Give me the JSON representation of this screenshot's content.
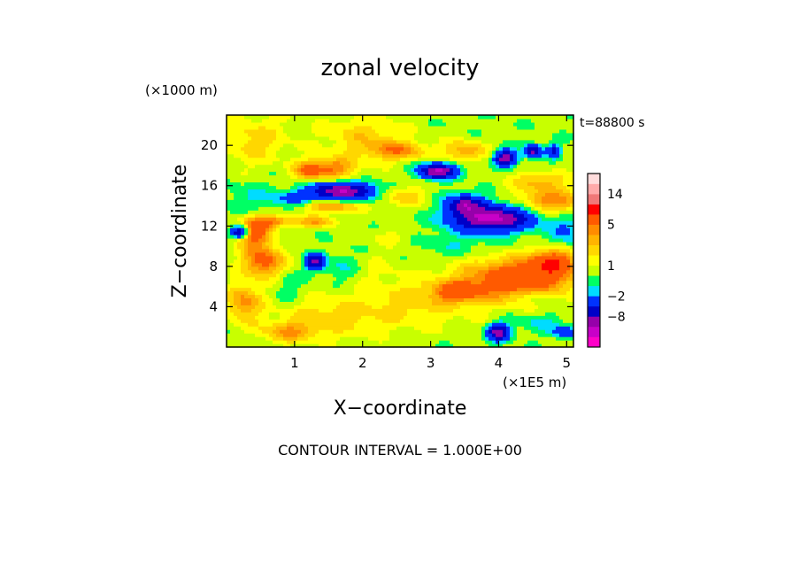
{
  "chart_data": {
    "type": "heatmap",
    "title": "zonal velocity",
    "xlabel": "X−coordinate",
    "ylabel": "Z−coordinate",
    "x_scale_label": "(×1E5 m)",
    "y_scale_label": "(×1000 m)",
    "time_label": "t=88800 s",
    "footer": "CONTOUR INTERVAL = 1.000E+00",
    "xlim": [
      0,
      5.1
    ],
    "ylim": [
      0,
      23
    ],
    "x_ticks": [
      1,
      2,
      3,
      4,
      5
    ],
    "y_ticks": [
      4,
      8,
      12,
      16,
      20
    ],
    "colorbar": {
      "colors": [
        "#ff00c8",
        "#c800c8",
        "#9600aa",
        "#0000c8",
        "#0032ff",
        "#00dcff",
        "#00ff64",
        "#c8ff00",
        "#ffff00",
        "#ffd700",
        "#ffb400",
        "#ff8c00",
        "#ff5a00",
        "#ff0000",
        "#f07878",
        "#ffaaaa",
        "#ffdcdc"
      ],
      "tick_labels": [
        {
          "label": "14",
          "value": 14
        },
        {
          "label": "5",
          "value": 5
        },
        {
          "label": "1",
          "value": 1
        },
        {
          "label": "−2",
          "value": -2
        },
        {
          "label": "−8",
          "value": -8
        }
      ],
      "levels": [
        -14,
        -11,
        -8,
        -5,
        -2,
        -1,
        0,
        1,
        2,
        3,
        4,
        5,
        8,
        11,
        14,
        17
      ]
    },
    "field": {
      "background": 0.3,
      "features": [
        {
          "x": 0.4,
          "z": 11.5,
          "rx": 0.25,
          "rz": 1.6,
          "v": 6.0
        },
        {
          "x": 0.55,
          "z": 8.5,
          "rx": 0.3,
          "rz": 1.5,
          "v": 5.5
        },
        {
          "x": 0.25,
          "z": 4.5,
          "rx": 0.25,
          "rz": 1.8,
          "v": 4.0
        },
        {
          "x": 0.9,
          "z": 6.0,
          "rx": 0.2,
          "rz": 2.0,
          "v": -1.2
        },
        {
          "x": 1.55,
          "z": 17.8,
          "rx": 0.35,
          "rz": 1.0,
          "v": 4.6
        },
        {
          "x": 1.2,
          "z": 17.5,
          "rx": 0.2,
          "rz": 0.9,
          "v": 4.2
        },
        {
          "x": 1.7,
          "z": 15.5,
          "rx": 0.45,
          "rz": 0.8,
          "v": -11.0
        },
        {
          "x": 1.0,
          "z": 14.8,
          "rx": 0.3,
          "rz": 0.7,
          "v": -2.5
        },
        {
          "x": 0.4,
          "z": 14.5,
          "rx": 0.45,
          "rz": 1.8,
          "v": -1.4
        },
        {
          "x": 0.2,
          "z": 11.5,
          "rx": 0.12,
          "rz": 0.6,
          "v": -10.0
        },
        {
          "x": 0.7,
          "z": 12.5,
          "rx": 0.25,
          "rz": 0.6,
          "v": 4.0
        },
        {
          "x": 1.3,
          "z": 12.5,
          "rx": 0.3,
          "rz": 0.6,
          "v": 3.5
        },
        {
          "x": 1.55,
          "z": 14.0,
          "rx": 0.4,
          "rz": 0.55,
          "v": 4.0
        },
        {
          "x": 1.3,
          "z": 8.5,
          "rx": 0.12,
          "rz": 0.7,
          "v": -9.5
        },
        {
          "x": 1.7,
          "z": 8.0,
          "rx": 0.35,
          "rz": 1.5,
          "v": -1.5
        },
        {
          "x": 2.5,
          "z": 19.5,
          "rx": 0.45,
          "rz": 0.9,
          "v": 4.0
        },
        {
          "x": 3.1,
          "z": 17.5,
          "rx": 0.25,
          "rz": 0.7,
          "v": -12.0
        },
        {
          "x": 3.5,
          "z": 19.5,
          "rx": 0.3,
          "rz": 1.0,
          "v": 3.5
        },
        {
          "x": 2.6,
          "z": 15.0,
          "rx": 0.3,
          "rz": 1.0,
          "v": 2.5
        },
        {
          "x": 3.9,
          "z": 12.8,
          "rx": 0.55,
          "rz": 1.2,
          "v": -12.5
        },
        {
          "x": 3.5,
          "z": 14.2,
          "rx": 0.25,
          "rz": 0.9,
          "v": -9.0
        },
        {
          "x": 4.8,
          "z": 14.5,
          "rx": 0.5,
          "rz": 1.2,
          "v": 4.5
        },
        {
          "x": 4.6,
          "z": 16.5,
          "rx": 0.4,
          "rz": 0.9,
          "v": 3.0
        },
        {
          "x": 4.1,
          "z": 18.8,
          "rx": 0.15,
          "rz": 0.7,
          "v": -11.0
        },
        {
          "x": 4.5,
          "z": 19.5,
          "rx": 0.12,
          "rz": 0.6,
          "v": -9.0
        },
        {
          "x": 4.8,
          "z": 19.5,
          "rx": 0.1,
          "rz": 0.6,
          "v": -6.0
        },
        {
          "x": 3.4,
          "z": 10.3,
          "rx": 0.6,
          "rz": 1.3,
          "v": -1.2
        },
        {
          "x": 4.3,
          "z": 6.8,
          "rx": 0.8,
          "rz": 2.0,
          "v": 7.0
        },
        {
          "x": 4.8,
          "z": 8.5,
          "rx": 0.3,
          "rz": 1.2,
          "v": 6.0
        },
        {
          "x": 3.4,
          "z": 5.5,
          "rx": 0.35,
          "rz": 1.0,
          "v": 5.0
        },
        {
          "x": 2.8,
          "z": 4.5,
          "rx": 0.8,
          "rz": 2.5,
          "v": 2.0
        },
        {
          "x": 2.1,
          "z": 8.0,
          "rx": 0.4,
          "rz": 1.5,
          "v": 0.9
        },
        {
          "x": 4.6,
          "z": 5.0,
          "rx": 0.3,
          "rz": 0.8,
          "v": -2.0
        },
        {
          "x": 4.0,
          "z": 1.5,
          "rx": 0.15,
          "rz": 0.8,
          "v": -10.0
        },
        {
          "x": 4.6,
          "z": 2.5,
          "rx": 0.35,
          "rz": 1.0,
          "v": -1.5
        },
        {
          "x": 5.0,
          "z": 1.5,
          "rx": 0.2,
          "rz": 0.6,
          "v": -4.0
        },
        {
          "x": 1.5,
          "z": 3.0,
          "rx": 0.8,
          "rz": 2.0,
          "v": 2.2
        },
        {
          "x": 0.9,
          "z": 1.5,
          "rx": 0.4,
          "rz": 1.0,
          "v": 3.2
        },
        {
          "x": 2.4,
          "z": 11.0,
          "rx": 0.4,
          "rz": 1.0,
          "v": 0.9
        },
        {
          "x": 2.0,
          "z": 21.0,
          "rx": 0.6,
          "rz": 2.0,
          "v": 2.2
        },
        {
          "x": 0.4,
          "z": 20.5,
          "rx": 0.5,
          "rz": 2.5,
          "v": 2.2
        },
        {
          "x": 5.0,
          "z": 11.5,
          "rx": 0.25,
          "rz": 1.5,
          "v": -2.5
        }
      ]
    }
  }
}
